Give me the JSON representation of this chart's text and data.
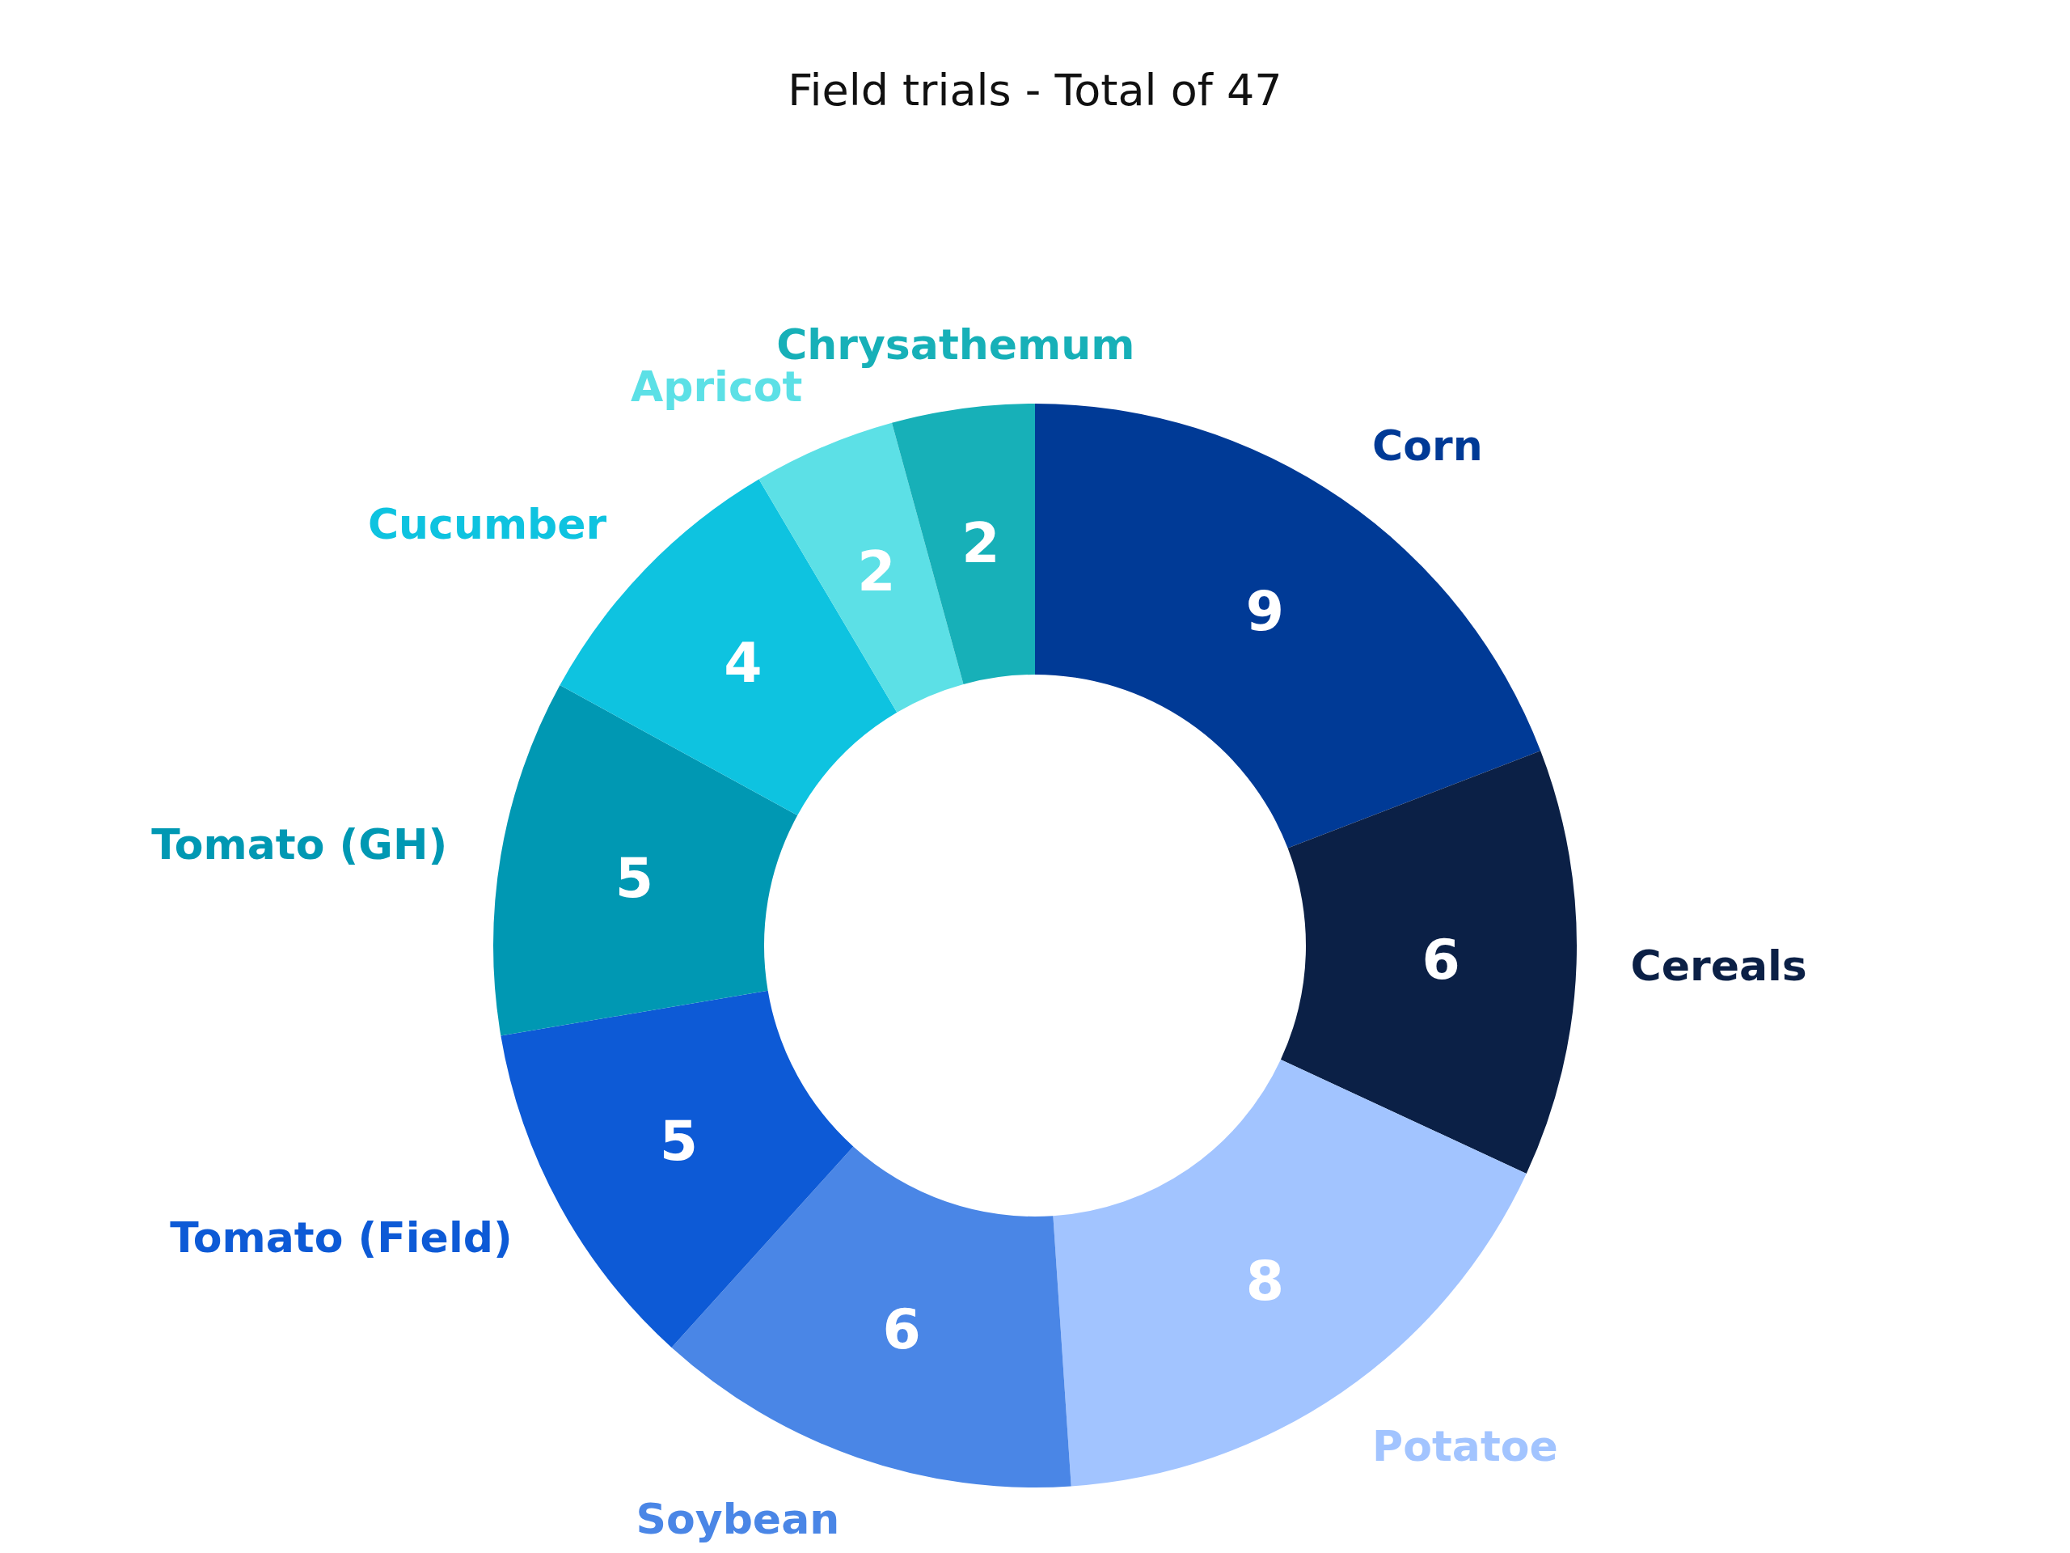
{
  "chart_data": {
    "type": "donut",
    "title": "Field trials - Total of 47",
    "categories": [
      "Corn",
      "Cereals",
      "Potatoe",
      "Soybean",
      "Tomato (Field)",
      "Tomato (GH)",
      "Cucumber",
      "Apricot",
      "Chrysathemum"
    ],
    "values": [
      9,
      6,
      8,
      6,
      5,
      5,
      4,
      2,
      2
    ],
    "colors": [
      "#003a96",
      "#0b2046",
      "#a2c4ff",
      "#4a86e6",
      "#0d5ad6",
      "#0098b3",
      "#0ec3e0",
      "#5ce0e6",
      "#17b0b8"
    ],
    "data_labels": true,
    "legend": false
  }
}
